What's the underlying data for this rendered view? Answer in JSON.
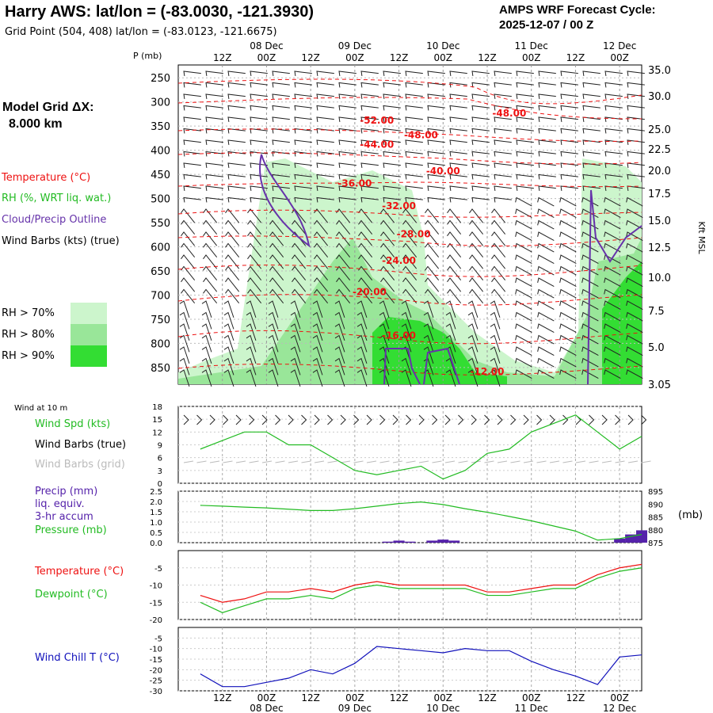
{
  "header": {
    "title": "Harry AWS:  lat/lon = (-83.0030, -121.3930)",
    "grid_point": "Grid Point (504, 408) lat/lon = (-83.0123, -121.6675)",
    "cycle_line1": "AMPS WRF Forecast Cycle:",
    "cycle_line2": "2025-12-07 / 00  Z"
  },
  "legend": {
    "model_grid_line1": "Model Grid ΔX:",
    "model_grid_line2": "8.000 km",
    "temperature": "Temperature (°C)",
    "rh": "RH (%, WRT liq. wat.)",
    "cloud": "Cloud/Precip Outline",
    "wind_barbs": "Wind Barbs (kts) (true)",
    "rh70": "RH > 70%",
    "rh80": "RH > 80%",
    "rh90": "RH > 90%",
    "rh_colors": [
      "#ccf5cc",
      "#99e699",
      "#33dd33"
    ],
    "temp_color": "#ee1111",
    "cloud_color": "#6633aa"
  },
  "chart_data": [
    {
      "type": "heatmap",
      "name_panel": "upper-air time-height section",
      "ylabel_left": "P (mb)",
      "ylabel_right": "Kft MSL",
      "time_ticks_top": [
        "12Z",
        "00Z",
        "12Z",
        "00Z",
        "12Z",
        "00Z",
        "12Z",
        "00Z",
        "12Z",
        "00Z"
      ],
      "date_labels": [
        "08 Dec",
        "09 Dec",
        "10 Dec",
        "11 Dec",
        "12 Dec"
      ],
      "pressure_ticks": [
        250,
        300,
        350,
        400,
        450,
        500,
        550,
        600,
        650,
        700,
        750,
        800,
        850
      ],
      "height_ticks_kft": [
        "35.0",
        "30.0",
        "25.0",
        "22.5",
        "20.0",
        "17.5",
        "15.0",
        "12.5",
        "10.0",
        "7.5",
        "5.0",
        "3.05"
      ],
      "temperature_contour_labels": [
        {
          "label": "-48.00",
          "hour": 84,
          "p": 330
        },
        {
          "label": "-52.00",
          "hour": 48,
          "p": 345
        },
        {
          "label": "-48.00",
          "hour": 60,
          "p": 375
        },
        {
          "label": "-44.00",
          "hour": 48,
          "p": 395
        },
        {
          "label": "-40.00",
          "hour": 66,
          "p": 450
        },
        {
          "label": "-36.00",
          "hour": 42,
          "p": 475
        },
        {
          "label": "-32.00",
          "hour": 54,
          "p": 522
        },
        {
          "label": "-28.00",
          "hour": 58,
          "p": 580
        },
        {
          "label": "-24.00",
          "hour": 54,
          "p": 635
        },
        {
          "label": "-20.00",
          "hour": 46,
          "p": 700
        },
        {
          "label": "-16.00",
          "hour": 54,
          "p": 790
        },
        {
          "label": "-12.00",
          "hour": 78,
          "p": 865
        }
      ],
      "grid": true
    },
    {
      "type": "line",
      "name_panel": "10 m wind",
      "label_title": "Wind at 10 m",
      "series_labels": [
        "Wind Spd (kts)",
        "Wind Barbs (true)",
        "Wind Barbs (grid)"
      ],
      "x_hours": [
        0,
        6,
        12,
        18,
        24,
        30,
        36,
        42,
        48,
        54,
        60,
        66,
        72,
        78,
        84,
        90,
        96,
        102,
        108,
        114,
        120
      ],
      "values": [
        8,
        10,
        12,
        12,
        9,
        9,
        6,
        3,
        2,
        3,
        4,
        1,
        3,
        7,
        8,
        12,
        14,
        16,
        12,
        8,
        11
      ],
      "y_ticks": [
        0,
        3,
        6,
        9,
        12,
        15,
        18
      ],
      "ylim": [
        0,
        18
      ],
      "color": "#22bb22"
    },
    {
      "type": "bar",
      "name_panel": "precipitation and pressure",
      "series_labels": [
        "Precip (mm)",
        "liq. equiv.",
        "3-hr accum",
        "Pressure (mb)"
      ],
      "right_unit": "(mb)",
      "precip_hours": [
        51,
        54,
        57,
        63,
        66,
        69,
        114,
        117,
        120
      ],
      "precip_mm": [
        0.05,
        0.1,
        0.05,
        0.1,
        0.15,
        0.1,
        0.2,
        0.4,
        0.6
      ],
      "pressure_hours": [
        0,
        6,
        12,
        18,
        24,
        30,
        36,
        42,
        48,
        54,
        60,
        66,
        72,
        78,
        84,
        90,
        96,
        102,
        108,
        114,
        120
      ],
      "pressure_mb": [
        889.5,
        889.2,
        888.8,
        888.5,
        888.0,
        887.5,
        887.5,
        888.2,
        889.2,
        890.2,
        890.8,
        889.8,
        888.2,
        886.8,
        885.2,
        883.5,
        881.5,
        879.5,
        876.0,
        876.6,
        878.2
      ],
      "left_ticks": [
        "0.0",
        "0.5",
        "1.0",
        "1.5",
        "2.0",
        "2.5"
      ],
      "right_ticks": [
        875,
        880,
        885,
        890,
        895
      ],
      "ylim_left": [
        0,
        2.5
      ],
      "ylim_right": [
        875,
        895
      ],
      "precip_color": "#5522aa",
      "pressure_color": "#22bb22"
    },
    {
      "type": "line",
      "name_panel": "temperature and dewpoint",
      "series": [
        {
          "name": "Temperature (°C)",
          "color": "#ee1111",
          "values": [
            -13,
            -15,
            -14,
            -12,
            -12,
            -11,
            -12,
            -10,
            -9,
            -10,
            -10,
            -10,
            -10,
            -12,
            -12,
            -11,
            -10,
            -10,
            -7,
            -5,
            -4
          ]
        },
        {
          "name": "Dewpoint (°C)",
          "color": "#22bb22",
          "values": [
            -15,
            -18,
            -16,
            -14,
            -14,
            -13,
            -14,
            -11,
            -10,
            -11,
            -11,
            -11,
            -11,
            -13,
            -13,
            -12,
            -11,
            -11,
            -8,
            -6,
            -5
          ]
        }
      ],
      "x_hours": [
        0,
        6,
        12,
        18,
        24,
        30,
        36,
        42,
        48,
        54,
        60,
        66,
        72,
        78,
        84,
        90,
        96,
        102,
        108,
        114,
        120
      ],
      "y_ticks": [
        -20,
        -15,
        -10,
        -5
      ],
      "ylim": [
        -20,
        0
      ]
    },
    {
      "type": "line",
      "name_panel": "wind chill",
      "series": [
        {
          "name": "Wind Chill T (°C)",
          "color": "#1111bb",
          "values": [
            -22,
            -28,
            -28,
            -26,
            -24,
            -20,
            -22,
            -17,
            -9,
            -10,
            -11,
            -12,
            -10,
            -11,
            -11,
            -16,
            -20,
            -23,
            -27,
            -14,
            -13
          ]
        }
      ],
      "x_hours": [
        0,
        6,
        12,
        18,
        24,
        30,
        36,
        42,
        48,
        54,
        60,
        66,
        72,
        78,
        84,
        90,
        96,
        102,
        108,
        114,
        120
      ],
      "y_ticks": [
        -30,
        -25,
        -20,
        -15,
        -10,
        -5
      ],
      "ylim": [
        -30,
        0
      ],
      "time_ticks_bottom": [
        "12Z",
        "00Z",
        "12Z",
        "00Z",
        "12Z",
        "00Z",
        "12Z",
        "00Z",
        "12Z",
        "00Z"
      ],
      "date_labels": [
        "08 Dec",
        "09 Dec",
        "10 Dec",
        "11 Dec",
        "12 Dec"
      ]
    }
  ]
}
